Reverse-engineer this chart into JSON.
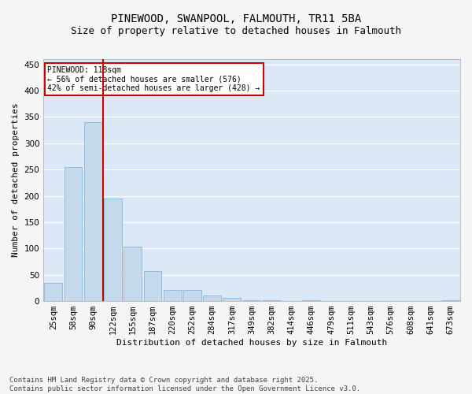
{
  "title": "PINEWOOD, SWANPOOL, FALMOUTH, TR11 5BA",
  "subtitle": "Size of property relative to detached houses in Falmouth",
  "xlabel": "Distribution of detached houses by size in Falmouth",
  "ylabel": "Number of detached properties",
  "categories": [
    "25sqm",
    "58sqm",
    "90sqm",
    "122sqm",
    "155sqm",
    "187sqm",
    "220sqm",
    "252sqm",
    "284sqm",
    "317sqm",
    "349sqm",
    "382sqm",
    "414sqm",
    "446sqm",
    "479sqm",
    "511sqm",
    "543sqm",
    "576sqm",
    "608sqm",
    "641sqm",
    "673sqm"
  ],
  "values": [
    35,
    255,
    340,
    195,
    103,
    57,
    21,
    21,
    11,
    6,
    2,
    1,
    0,
    1,
    0,
    0,
    0,
    0,
    0,
    0,
    2
  ],
  "bar_color": "#c5d9ed",
  "bar_edgecolor": "#7aadd4",
  "vline_color": "#cc0000",
  "vline_x_index": 2.5,
  "annotation_text": "PINEWOOD: 118sqm\n← 56% of detached houses are smaller (576)\n42% of semi-detached houses are larger (428) →",
  "annotation_box_edgecolor": "#cc0000",
  "annotation_box_facecolor": "#ffffff",
  "ylim": [
    0,
    460
  ],
  "yticks": [
    0,
    50,
    100,
    150,
    200,
    250,
    300,
    350,
    400,
    450
  ],
  "background_color": "#dce8f5",
  "grid_color": "#ffffff",
  "fig_facecolor": "#f5f5f5",
  "footer": "Contains HM Land Registry data © Crown copyright and database right 2025.\nContains public sector information licensed under the Open Government Licence v3.0.",
  "title_fontsize": 10,
  "subtitle_fontsize": 9,
  "xlabel_fontsize": 8,
  "ylabel_fontsize": 8,
  "tick_fontsize": 7.5,
  "footer_fontsize": 6.5
}
